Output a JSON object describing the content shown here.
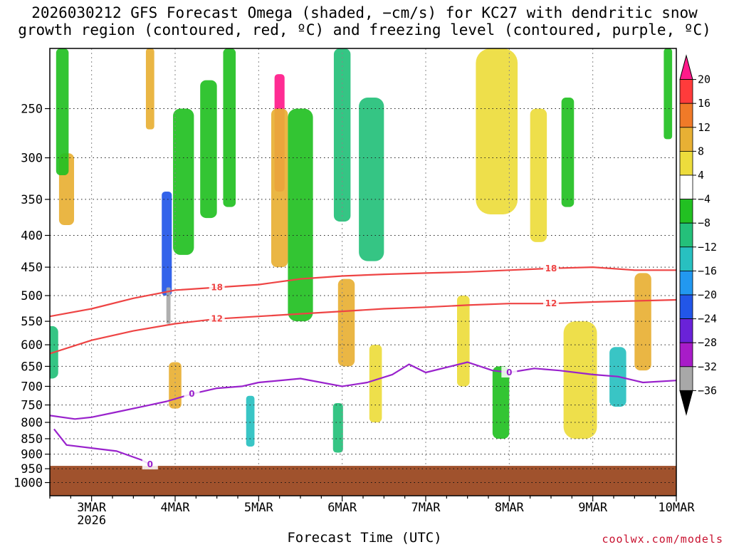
{
  "title_lines": [
    "2026030212 GFS Forecast Omega (shaded, −cm/s) for KC27 with dendritic snow",
    "growth region (contoured, red, ºC) and freezing level (contoured, purple, ºC)"
  ],
  "xlabel": "Forecast Time (UTC)",
  "credit": "coolwx.com/models",
  "chart_data": {
    "type": "heatmap",
    "x_range": [
      "2026-03-02 12Z",
      "2026-03-10 00Z"
    ],
    "x_ticks": [
      {
        "day": 3,
        "label": "3MAR",
        "sub": "2026"
      },
      {
        "day": 4,
        "label": "4MAR"
      },
      {
        "day": 5,
        "label": "5MAR"
      },
      {
        "day": 6,
        "label": "6MAR"
      },
      {
        "day": 7,
        "label": "7MAR"
      },
      {
        "day": 8,
        "label": "8MAR"
      },
      {
        "day": 9,
        "label": "9MAR"
      },
      {
        "day": 10,
        "label": "10MAR"
      }
    ],
    "y_scale": "log-pressure",
    "y_range_hPa": [
      200,
      1050
    ],
    "y_ticks": [
      250,
      300,
      350,
      400,
      450,
      500,
      550,
      600,
      650,
      700,
      750,
      800,
      850,
      900,
      950,
      1000
    ],
    "ground_level_hPa": 940,
    "colorbar": {
      "ticks": [
        20,
        16,
        12,
        8,
        4,
        -4,
        -8,
        -12,
        -16,
        -20,
        -24,
        -28,
        -32,
        -36
      ],
      "colors": [
        "#ff1a8a",
        "#ff3b3b",
        "#f07a28",
        "#e8b034",
        "#eddc3c",
        "#ffffff",
        "#22c022",
        "#24c07a",
        "#28c0c0",
        "#2298f0",
        "#2256e8",
        "#6a22d8",
        "#a81cc8",
        "#a8a8a8",
        "#000000"
      ]
    },
    "shading_cells": [
      {
        "day": 2.7,
        "p": 340,
        "w": 0.18,
        "dp": 90,
        "v": 10
      },
      {
        "day": 2.5,
        "p": 620,
        "w": 0.2,
        "dp": 120,
        "v": -8
      },
      {
        "day": 2.65,
        "p": 250,
        "w": 0.15,
        "dp": 140,
        "v": -6
      },
      {
        "day": 3.7,
        "p": 200,
        "w": 0.1,
        "dp": 140,
        "v": 8
      },
      {
        "day": 3.9,
        "p": 420,
        "w": 0.12,
        "dp": 160,
        "v": -20
      },
      {
        "day": 3.92,
        "p": 520,
        "w": 0.05,
        "dp": 70,
        "v": -32
      },
      {
        "day": 4.0,
        "p": 700,
        "w": 0.15,
        "dp": 120,
        "v": 10
      },
      {
        "day": 4.4,
        "p": 300,
        "w": 0.2,
        "dp": 150,
        "v": -6
      },
      {
        "day": 4.1,
        "p": 340,
        "w": 0.25,
        "dp": 180,
        "v": -6
      },
      {
        "day": 4.65,
        "p": 280,
        "w": 0.15,
        "dp": 160,
        "v": -6
      },
      {
        "day": 4.9,
        "p": 800,
        "w": 0.1,
        "dp": 150,
        "v": -12
      },
      {
        "day": 5.25,
        "p": 280,
        "w": 0.12,
        "dp": 120,
        "v": 20
      },
      {
        "day": 5.25,
        "p": 350,
        "w": 0.2,
        "dp": 200,
        "v": 8
      },
      {
        "day": 5.5,
        "p": 400,
        "w": 0.3,
        "dp": 300,
        "v": -6
      },
      {
        "day": 6.0,
        "p": 290,
        "w": 0.2,
        "dp": 180,
        "v": -10
      },
      {
        "day": 6.35,
        "p": 340,
        "w": 0.3,
        "dp": 200,
        "v": -10
      },
      {
        "day": 6.05,
        "p": 560,
        "w": 0.2,
        "dp": 180,
        "v": 8
      },
      {
        "day": 5.95,
        "p": 820,
        "w": 0.12,
        "dp": 150,
        "v": -10
      },
      {
        "day": 6.4,
        "p": 700,
        "w": 0.15,
        "dp": 200,
        "v": 6
      },
      {
        "day": 7.85,
        "p": 270,
        "w": 0.5,
        "dp": 200,
        "v": 6
      },
      {
        "day": 8.35,
        "p": 330,
        "w": 0.2,
        "dp": 160,
        "v": 6
      },
      {
        "day": 8.7,
        "p": 300,
        "w": 0.15,
        "dp": 120,
        "v": -6
      },
      {
        "day": 8.85,
        "p": 700,
        "w": 0.4,
        "dp": 300,
        "v": 6
      },
      {
        "day": 9.3,
        "p": 680,
        "w": 0.2,
        "dp": 150,
        "v": -12
      },
      {
        "day": 9.6,
        "p": 560,
        "w": 0.2,
        "dp": 200,
        "v": 10
      },
      {
        "day": 7.9,
        "p": 750,
        "w": 0.2,
        "dp": 200,
        "v": -6
      },
      {
        "day": 7.45,
        "p": 600,
        "w": 0.15,
        "dp": 200,
        "v": 6
      },
      {
        "day": 9.9,
        "p": 230,
        "w": 0.1,
        "dp": 100,
        "v": -6
      }
    ],
    "contours": [
      {
        "name": "-18",
        "color": "#ee4444",
        "label": "18",
        "points": [
          [
            2.5,
            540
          ],
          [
            3.0,
            525
          ],
          [
            3.5,
            505
          ],
          [
            4.0,
            490
          ],
          [
            4.5,
            485
          ],
          [
            5.0,
            480
          ],
          [
            5.5,
            470
          ],
          [
            6.0,
            465
          ],
          [
            6.5,
            462
          ],
          [
            7.0,
            460
          ],
          [
            7.5,
            458
          ],
          [
            8.0,
            455
          ],
          [
            8.5,
            452
          ],
          [
            9.0,
            450
          ],
          [
            9.5,
            455
          ],
          [
            10,
            455
          ]
        ]
      },
      {
        "name": "-12",
        "color": "#ee4444",
        "label": "12",
        "points": [
          [
            2.5,
            620
          ],
          [
            3.0,
            590
          ],
          [
            3.5,
            570
          ],
          [
            4.0,
            555
          ],
          [
            4.5,
            545
          ],
          [
            5.0,
            540
          ],
          [
            5.5,
            535
          ],
          [
            6.0,
            530
          ],
          [
            6.5,
            525
          ],
          [
            7.0,
            522
          ],
          [
            7.5,
            518
          ],
          [
            8.0,
            515
          ],
          [
            8.5,
            515
          ],
          [
            9.0,
            512
          ],
          [
            9.5,
            510
          ],
          [
            10,
            508
          ]
        ]
      },
      {
        "name": "0",
        "color": "#9922cc",
        "label": "0",
        "points": [
          [
            2.5,
            780
          ],
          [
            2.8,
            790
          ],
          [
            3.0,
            785
          ],
          [
            3.3,
            770
          ],
          [
            3.6,
            755
          ],
          [
            3.9,
            740
          ],
          [
            4.2,
            720
          ],
          [
            4.5,
            705
          ],
          [
            4.8,
            700
          ],
          [
            5.0,
            690
          ],
          [
            5.5,
            680
          ],
          [
            6.0,
            700
          ],
          [
            6.3,
            690
          ],
          [
            6.6,
            670
          ],
          [
            6.8,
            645
          ],
          [
            7.0,
            665
          ],
          [
            7.5,
            640
          ],
          [
            7.8,
            660
          ],
          [
            8.0,
            665
          ],
          [
            8.3,
            655
          ],
          [
            8.6,
            660
          ],
          [
            9.0,
            670
          ],
          [
            9.3,
            675
          ],
          [
            9.6,
            690
          ],
          [
            10,
            685
          ]
        ]
      },
      {
        "name": "0-low",
        "color": "#9922cc",
        "label": "0",
        "points": [
          [
            2.55,
            820
          ],
          [
            2.7,
            870
          ],
          [
            3.0,
            880
          ],
          [
            3.3,
            890
          ],
          [
            3.6,
            920
          ],
          [
            3.7,
            935
          ]
        ]
      }
    ]
  }
}
